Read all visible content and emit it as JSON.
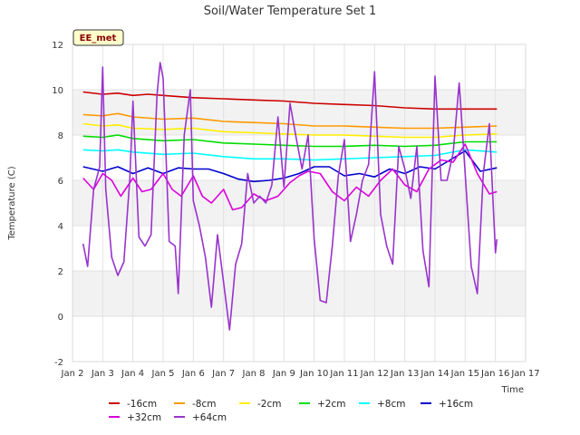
{
  "chart_data": {
    "type": "line",
    "title": "Soil/Water Temperature Set 1",
    "xlabel": "Time",
    "ylabel": "Temperature (C)",
    "badge": "EE_met",
    "xlim": [
      2,
      17
    ],
    "ylim": [
      -2,
      12
    ],
    "x_ticks": [
      {
        "x": 2,
        "label": "Jan 2"
      },
      {
        "x": 3,
        "label": "Jan 3"
      },
      {
        "x": 4,
        "label": "Jan 4"
      },
      {
        "x": 5,
        "label": "Jan 5"
      },
      {
        "x": 6,
        "label": "Jan 6"
      },
      {
        "x": 7,
        "label": "Jan 7"
      },
      {
        "x": 8,
        "label": "Jan 8"
      },
      {
        "x": 9,
        "label": "Jan 9"
      },
      {
        "x": 10,
        "label": "Jan 10"
      },
      {
        "x": 11,
        "label": "Jan 11"
      },
      {
        "x": 12,
        "label": "Jan 12"
      },
      {
        "x": 13,
        "label": "Jan 13"
      },
      {
        "x": 14,
        "label": "Jan 14"
      },
      {
        "x": 15,
        "label": "Jan 15"
      },
      {
        "x": 16,
        "label": "Jan 16"
      },
      {
        "x": 17,
        "label": "Jan 17"
      }
    ],
    "y_ticks": [
      -2,
      0,
      2,
      4,
      6,
      8,
      10,
      12
    ],
    "grid": true,
    "legend_position": "bottom",
    "series": [
      {
        "name": "-16cm",
        "color": "#cc0000",
        "x": [
          2.35,
          3,
          3.5,
          4,
          4.5,
          5,
          6,
          7,
          8,
          9,
          10,
          11,
          12,
          13,
          14,
          15,
          16.05
        ],
        "y": [
          9.9,
          9.8,
          9.85,
          9.75,
          9.8,
          9.75,
          9.65,
          9.6,
          9.55,
          9.5,
          9.4,
          9.35,
          9.3,
          9.2,
          9.15,
          9.15,
          9.15
        ]
      },
      {
        "name": "-8cm",
        "color": "#ff9900",
        "x": [
          2.35,
          3,
          3.5,
          4,
          5,
          6,
          7,
          8,
          9,
          10,
          11,
          12,
          13,
          14,
          15,
          16.05
        ],
        "y": [
          8.9,
          8.85,
          8.95,
          8.8,
          8.7,
          8.75,
          8.6,
          8.55,
          8.5,
          8.4,
          8.4,
          8.35,
          8.3,
          8.3,
          8.35,
          8.4
        ]
      },
      {
        "name": "-2cm",
        "color": "#ffee00",
        "x": [
          2.35,
          3,
          3.5,
          4,
          5,
          6,
          7,
          8,
          9,
          10,
          11,
          12,
          13,
          14,
          15,
          16.05
        ],
        "y": [
          8.5,
          8.4,
          8.45,
          8.3,
          8.25,
          8.3,
          8.15,
          8.1,
          8.05,
          8.0,
          8.0,
          7.95,
          7.9,
          7.9,
          8.0,
          8.05
        ]
      },
      {
        "name": "+2cm",
        "color": "#00dd00",
        "x": [
          2.35,
          3,
          3.5,
          4,
          5,
          6,
          7,
          8,
          9,
          10,
          11,
          12,
          13,
          14,
          15,
          16.05
        ],
        "y": [
          7.95,
          7.9,
          8.0,
          7.85,
          7.75,
          7.8,
          7.65,
          7.6,
          7.55,
          7.5,
          7.5,
          7.55,
          7.5,
          7.55,
          7.7,
          7.7
        ]
      },
      {
        "name": "+8cm",
        "color": "#00ffff",
        "x": [
          2.35,
          3,
          3.5,
          4,
          5,
          6,
          7,
          8,
          9,
          10,
          11,
          12,
          13,
          14,
          15,
          16.05
        ],
        "y": [
          7.35,
          7.3,
          7.35,
          7.25,
          7.15,
          7.2,
          7.05,
          6.95,
          6.95,
          6.9,
          6.95,
          7.0,
          7.05,
          7.1,
          7.35,
          7.25
        ]
      },
      {
        "name": "+16cm",
        "color": "#0000cc",
        "x": [
          2.35,
          3,
          3.5,
          4,
          4.5,
          5,
          5.5,
          6,
          6.5,
          7,
          7.5,
          8,
          8.5,
          9,
          9.5,
          10,
          10.5,
          11,
          11.5,
          12,
          12.5,
          13,
          13.5,
          14,
          14.5,
          15,
          15.5,
          16.05
        ],
        "y": [
          6.6,
          6.4,
          6.6,
          6.3,
          6.55,
          6.3,
          6.55,
          6.5,
          6.5,
          6.3,
          6.05,
          5.95,
          6.0,
          6.1,
          6.3,
          6.6,
          6.6,
          6.2,
          6.3,
          6.15,
          6.5,
          6.3,
          6.6,
          6.5,
          6.9,
          7.3,
          6.4,
          6.55
        ]
      },
      {
        "name": "+32cm",
        "color": "#dd00dd",
        "x": [
          2.35,
          2.7,
          3.0,
          3.3,
          3.6,
          4.0,
          4.3,
          4.6,
          5.0,
          5.3,
          5.6,
          6.0,
          6.3,
          6.6,
          7.0,
          7.3,
          7.6,
          8.0,
          8.4,
          8.8,
          9.2,
          9.5,
          9.8,
          10.2,
          10.6,
          11.0,
          11.4,
          11.8,
          12.2,
          12.6,
          13.0,
          13.4,
          13.8,
          14.2,
          14.6,
          15.0,
          15.4,
          15.8,
          16.05
        ],
        "y": [
          6.1,
          5.6,
          6.3,
          6.0,
          5.3,
          6.1,
          5.5,
          5.6,
          6.3,
          5.6,
          5.3,
          6.2,
          5.3,
          5.0,
          5.6,
          4.7,
          4.8,
          5.4,
          5.1,
          5.3,
          5.9,
          6.2,
          6.4,
          6.3,
          5.5,
          5.1,
          5.7,
          5.3,
          6.0,
          6.5,
          5.8,
          5.5,
          6.5,
          6.9,
          6.8,
          7.6,
          6.3,
          5.4,
          5.5
        ]
      },
      {
        "name": "+64cm",
        "color": "#9933cc",
        "x": [
          2.35,
          2.5,
          2.7,
          2.9,
          3.0,
          3.1,
          3.3,
          3.5,
          3.7,
          3.9,
          4.0,
          4.2,
          4.4,
          4.6,
          4.8,
          4.9,
          5.0,
          5.2,
          5.4,
          5.5,
          5.7,
          5.9,
          6.0,
          6.2,
          6.4,
          6.6,
          6.8,
          7.0,
          7.2,
          7.4,
          7.6,
          7.8,
          8.0,
          8.2,
          8.4,
          8.6,
          8.8,
          9.0,
          9.2,
          9.4,
          9.6,
          9.8,
          10.0,
          10.2,
          10.4,
          10.6,
          10.8,
          11.0,
          11.2,
          11.4,
          11.6,
          11.8,
          12.0,
          12.2,
          12.4,
          12.6,
          12.8,
          13.0,
          13.2,
          13.4,
          13.6,
          13.8,
          14.0,
          14.2,
          14.4,
          14.6,
          14.8,
          15.0,
          15.2,
          15.4,
          15.6,
          15.8,
          16.0,
          16.05
        ],
        "y": [
          3.2,
          2.2,
          5.6,
          6.6,
          11.0,
          5.6,
          2.6,
          1.8,
          2.4,
          6.1,
          9.5,
          3.5,
          3.1,
          3.6,
          9.8,
          11.2,
          10.5,
          3.3,
          3.1,
          1.0,
          8.0,
          10.0,
          5.1,
          4.0,
          2.6,
          0.4,
          3.6,
          1.5,
          -0.6,
          2.3,
          3.2,
          6.3,
          5.0,
          5.3,
          5.0,
          5.8,
          8.8,
          5.7,
          9.4,
          7.9,
          6.5,
          8.0,
          3.4,
          0.7,
          0.6,
          3.1,
          6.2,
          7.8,
          3.3,
          4.5,
          6.0,
          6.7,
          10.8,
          4.5,
          3.1,
          2.3,
          7.5,
          6.5,
          5.2,
          7.5,
          2.9,
          1.3,
          10.6,
          6.0,
          6.0,
          7.2,
          10.3,
          6.3,
          2.2,
          1.0,
          6.3,
          8.5,
          2.8,
          3.4
        ]
      }
    ]
  }
}
